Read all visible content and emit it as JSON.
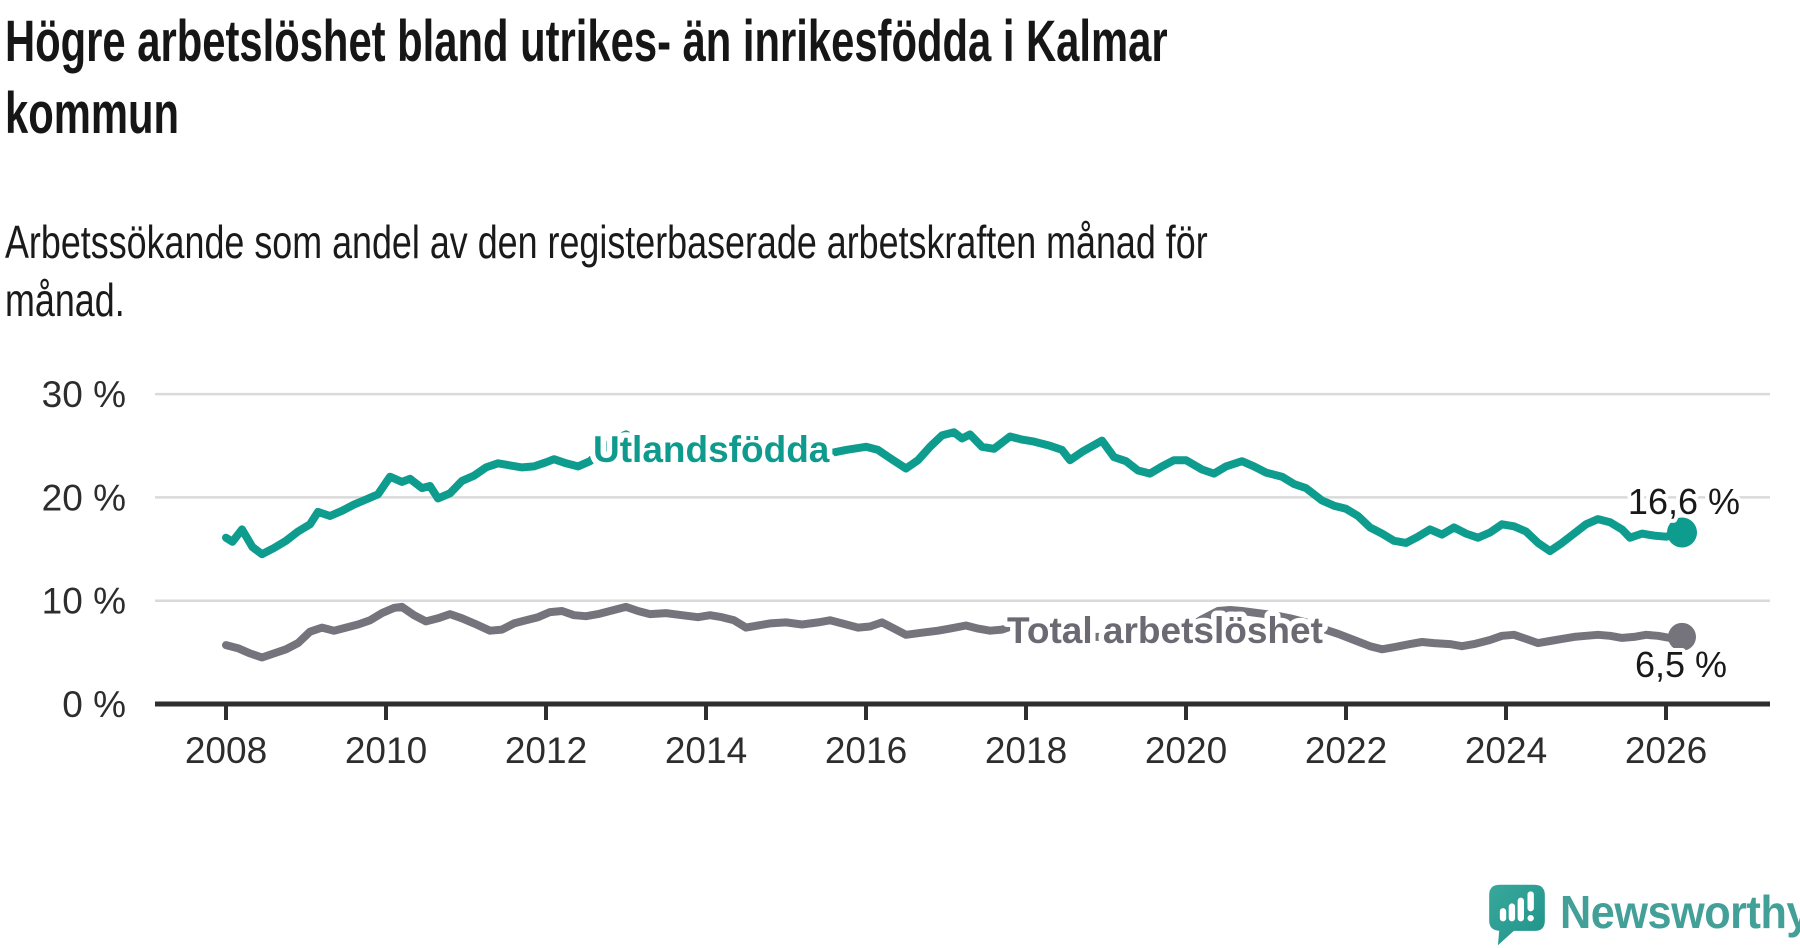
{
  "header": {
    "title_lines": [
      "Högre arbetslöshet bland utrikes- än inrikesfödda i Kalmar",
      "kommun"
    ],
    "subtitle_lines": [
      "Arbetssökande som andel av den registerbaserade arbetskraften månad för",
      "månad."
    ]
  },
  "logo": {
    "brand": "Newsworthy",
    "icon": "newsworthy-speech-bubble-chart-icon"
  },
  "colors": {
    "teal_series": "#0d9c8d",
    "teal_label": "#0f9a8e",
    "gray_series": "#75747c",
    "gray_label": "#6b6a72",
    "end_label_text": "#191919",
    "axis": "#2e2e2e",
    "grid": "#dadada",
    "tick_label": "#2d2d2d",
    "brand_teal": "#43a098",
    "background": "#ffffff"
  },
  "chart_data": {
    "type": "line",
    "title": "Högre arbetslöshet bland utrikes- än inrikesfödda i Kalmar kommun",
    "subtitle": "Arbetssökande som andel av den registerbaserade arbetskraften månad för månad.",
    "xlabel": "",
    "ylabel": "",
    "x_range": [
      2008.0,
      2026.2
    ],
    "ylim": [
      0,
      31.5
    ],
    "grid": "horizontal",
    "legend_position": "inline-labels-on-lines",
    "x_ticks": [
      2008,
      2010,
      2012,
      2014,
      2016,
      2018,
      2020,
      2022,
      2024,
      2026
    ],
    "y_ticks": [
      0,
      10,
      20,
      30
    ],
    "y_tick_labels": [
      "0 %",
      "10 %",
      "20 %",
      "30 %"
    ],
    "series": [
      {
        "name": "Utlandsfödda",
        "label": "Utlandsfödda",
        "color": "#0d9c8d",
        "end_label": "16,6 %",
        "end_value": 16.6,
        "points": [
          [
            2008.0,
            16.1
          ],
          [
            2008.08,
            15.7
          ],
          [
            2008.2,
            16.9
          ],
          [
            2008.33,
            15.2
          ],
          [
            2008.45,
            14.5
          ],
          [
            2008.6,
            15.1
          ],
          [
            2008.75,
            15.8
          ],
          [
            2008.9,
            16.7
          ],
          [
            2009.05,
            17.4
          ],
          [
            2009.15,
            18.6
          ],
          [
            2009.3,
            18.2
          ],
          [
            2009.45,
            18.7
          ],
          [
            2009.6,
            19.3
          ],
          [
            2009.75,
            19.8
          ],
          [
            2009.9,
            20.3
          ],
          [
            2010.05,
            22.0
          ],
          [
            2010.2,
            21.5
          ],
          [
            2010.3,
            21.8
          ],
          [
            2010.45,
            20.9
          ],
          [
            2010.55,
            21.1
          ],
          [
            2010.65,
            19.9
          ],
          [
            2010.8,
            20.4
          ],
          [
            2010.95,
            21.6
          ],
          [
            2011.1,
            22.1
          ],
          [
            2011.25,
            22.9
          ],
          [
            2011.4,
            23.3
          ],
          [
            2011.55,
            23.1
          ],
          [
            2011.7,
            22.9
          ],
          [
            2011.85,
            23.0
          ],
          [
            2012.0,
            23.4
          ],
          [
            2012.1,
            23.7
          ],
          [
            2012.25,
            23.3
          ],
          [
            2012.4,
            23.0
          ],
          [
            2012.55,
            23.5
          ],
          [
            2012.7,
            24.6
          ],
          [
            2012.85,
            25.6
          ],
          [
            2013.0,
            26.1
          ],
          [
            2013.2,
            25.3
          ],
          [
            2013.4,
            24.7
          ],
          [
            2013.6,
            24.5
          ],
          [
            2013.8,
            24.9
          ],
          [
            2014.0,
            25.1
          ],
          [
            2014.25,
            24.7
          ],
          [
            2014.5,
            24.4
          ],
          [
            2014.75,
            24.6
          ],
          [
            2015.0,
            24.8
          ],
          [
            2015.25,
            24.4
          ],
          [
            2015.5,
            24.2
          ],
          [
            2015.75,
            24.6
          ],
          [
            2016.0,
            24.9
          ],
          [
            2016.15,
            24.6
          ],
          [
            2016.3,
            23.8
          ],
          [
            2016.5,
            22.8
          ],
          [
            2016.65,
            23.6
          ],
          [
            2016.8,
            24.9
          ],
          [
            2016.95,
            26.0
          ],
          [
            2017.1,
            26.3
          ],
          [
            2017.2,
            25.7
          ],
          [
            2017.3,
            26.1
          ],
          [
            2017.45,
            24.9
          ],
          [
            2017.6,
            24.7
          ],
          [
            2017.8,
            25.9
          ],
          [
            2017.95,
            25.6
          ],
          [
            2018.1,
            25.4
          ],
          [
            2018.3,
            25.0
          ],
          [
            2018.45,
            24.6
          ],
          [
            2018.55,
            23.6
          ],
          [
            2018.7,
            24.4
          ],
          [
            2018.95,
            25.5
          ],
          [
            2019.1,
            23.9
          ],
          [
            2019.25,
            23.5
          ],
          [
            2019.4,
            22.6
          ],
          [
            2019.55,
            22.3
          ],
          [
            2019.7,
            23.0
          ],
          [
            2019.85,
            23.6
          ],
          [
            2020.0,
            23.6
          ],
          [
            2020.2,
            22.7
          ],
          [
            2020.35,
            22.3
          ],
          [
            2020.5,
            23.0
          ],
          [
            2020.7,
            23.5
          ],
          [
            2020.85,
            23.0
          ],
          [
            2021.0,
            22.4
          ],
          [
            2021.2,
            22.0
          ],
          [
            2021.35,
            21.3
          ],
          [
            2021.5,
            20.9
          ],
          [
            2021.7,
            19.7
          ],
          [
            2021.85,
            19.2
          ],
          [
            2022.0,
            18.9
          ],
          [
            2022.15,
            18.2
          ],
          [
            2022.3,
            17.1
          ],
          [
            2022.45,
            16.5
          ],
          [
            2022.6,
            15.8
          ],
          [
            2022.75,
            15.6
          ],
          [
            2022.9,
            16.2
          ],
          [
            2023.05,
            16.9
          ],
          [
            2023.2,
            16.4
          ],
          [
            2023.35,
            17.1
          ],
          [
            2023.5,
            16.5
          ],
          [
            2023.65,
            16.1
          ],
          [
            2023.8,
            16.6
          ],
          [
            2023.95,
            17.4
          ],
          [
            2024.1,
            17.2
          ],
          [
            2024.25,
            16.7
          ],
          [
            2024.4,
            15.6
          ],
          [
            2024.55,
            14.8
          ],
          [
            2024.7,
            15.6
          ],
          [
            2024.85,
            16.5
          ],
          [
            2025.0,
            17.4
          ],
          [
            2025.15,
            17.9
          ],
          [
            2025.3,
            17.6
          ],
          [
            2025.45,
            16.9
          ],
          [
            2025.55,
            16.1
          ],
          [
            2025.7,
            16.5
          ],
          [
            2025.85,
            16.3
          ],
          [
            2026.0,
            16.2
          ],
          [
            2026.1,
            16.4
          ],
          [
            2026.2,
            16.6
          ]
        ]
      },
      {
        "name": "Total arbetslöshet",
        "label": "Total arbetslöshet",
        "color": "#75747c",
        "end_label": "6,5 %",
        "end_value": 6.5,
        "points": [
          [
            2008.0,
            5.7
          ],
          [
            2008.15,
            5.4
          ],
          [
            2008.3,
            4.9
          ],
          [
            2008.45,
            4.5
          ],
          [
            2008.6,
            4.9
          ],
          [
            2008.75,
            5.3
          ],
          [
            2008.9,
            5.9
          ],
          [
            2009.05,
            7.0
          ],
          [
            2009.2,
            7.4
          ],
          [
            2009.35,
            7.1
          ],
          [
            2009.5,
            7.4
          ],
          [
            2009.65,
            7.7
          ],
          [
            2009.8,
            8.1
          ],
          [
            2009.95,
            8.8
          ],
          [
            2010.1,
            9.3
          ],
          [
            2010.2,
            9.4
          ],
          [
            2010.35,
            8.6
          ],
          [
            2010.5,
            8.0
          ],
          [
            2010.65,
            8.3
          ],
          [
            2010.8,
            8.7
          ],
          [
            2010.95,
            8.3
          ],
          [
            2011.1,
            7.8
          ],
          [
            2011.3,
            7.1
          ],
          [
            2011.45,
            7.2
          ],
          [
            2011.6,
            7.8
          ],
          [
            2011.75,
            8.1
          ],
          [
            2011.9,
            8.4
          ],
          [
            2012.05,
            8.9
          ],
          [
            2012.2,
            9.0
          ],
          [
            2012.35,
            8.6
          ],
          [
            2012.5,
            8.5
          ],
          [
            2012.65,
            8.7
          ],
          [
            2012.8,
            9.0
          ],
          [
            2013.0,
            9.4
          ],
          [
            2013.15,
            9.0
          ],
          [
            2013.3,
            8.7
          ],
          [
            2013.5,
            8.8
          ],
          [
            2013.7,
            8.6
          ],
          [
            2013.9,
            8.4
          ],
          [
            2014.05,
            8.6
          ],
          [
            2014.2,
            8.4
          ],
          [
            2014.35,
            8.1
          ],
          [
            2014.5,
            7.4
          ],
          [
            2014.65,
            7.6
          ],
          [
            2014.8,
            7.8
          ],
          [
            2015.0,
            7.9
          ],
          [
            2015.2,
            7.7
          ],
          [
            2015.4,
            7.9
          ],
          [
            2015.55,
            8.1
          ],
          [
            2015.7,
            7.8
          ],
          [
            2015.9,
            7.4
          ],
          [
            2016.05,
            7.5
          ],
          [
            2016.2,
            7.9
          ],
          [
            2016.35,
            7.3
          ],
          [
            2016.5,
            6.7
          ],
          [
            2016.7,
            6.9
          ],
          [
            2016.9,
            7.1
          ],
          [
            2017.05,
            7.3
          ],
          [
            2017.25,
            7.6
          ],
          [
            2017.4,
            7.3
          ],
          [
            2017.55,
            7.1
          ],
          [
            2017.7,
            7.2
          ],
          [
            2017.85,
            7.6
          ],
          [
            2018.0,
            7.3
          ],
          [
            2018.2,
            6.9
          ],
          [
            2018.4,
            6.6
          ],
          [
            2018.6,
            6.4
          ],
          [
            2018.8,
            6.5
          ],
          [
            2019.0,
            6.5
          ],
          [
            2019.2,
            6.4
          ],
          [
            2019.4,
            6.3
          ],
          [
            2019.6,
            6.5
          ],
          [
            2019.8,
            6.8
          ],
          [
            2020.0,
            7.2
          ],
          [
            2020.2,
            8.2
          ],
          [
            2020.4,
            9.0
          ],
          [
            2020.55,
            9.1
          ],
          [
            2020.7,
            9.0
          ],
          [
            2020.9,
            8.8
          ],
          [
            2021.1,
            8.6
          ],
          [
            2021.3,
            8.3
          ],
          [
            2021.5,
            7.9
          ],
          [
            2021.7,
            7.3
          ],
          [
            2021.9,
            6.8
          ],
          [
            2022.1,
            6.2
          ],
          [
            2022.3,
            5.6
          ],
          [
            2022.45,
            5.3
          ],
          [
            2022.6,
            5.5
          ],
          [
            2022.8,
            5.8
          ],
          [
            2022.95,
            6.0
          ],
          [
            2023.1,
            5.9
          ],
          [
            2023.3,
            5.8
          ],
          [
            2023.45,
            5.6
          ],
          [
            2023.6,
            5.8
          ],
          [
            2023.8,
            6.2
          ],
          [
            2023.95,
            6.6
          ],
          [
            2024.1,
            6.7
          ],
          [
            2024.25,
            6.3
          ],
          [
            2024.4,
            5.9
          ],
          [
            2024.55,
            6.1
          ],
          [
            2024.7,
            6.3
          ],
          [
            2024.85,
            6.5
          ],
          [
            2025.0,
            6.6
          ],
          [
            2025.15,
            6.7
          ],
          [
            2025.3,
            6.6
          ],
          [
            2025.45,
            6.4
          ],
          [
            2025.6,
            6.5
          ],
          [
            2025.75,
            6.7
          ],
          [
            2025.9,
            6.6
          ],
          [
            2026.05,
            6.4
          ],
          [
            2026.2,
            6.5
          ]
        ]
      }
    ]
  }
}
